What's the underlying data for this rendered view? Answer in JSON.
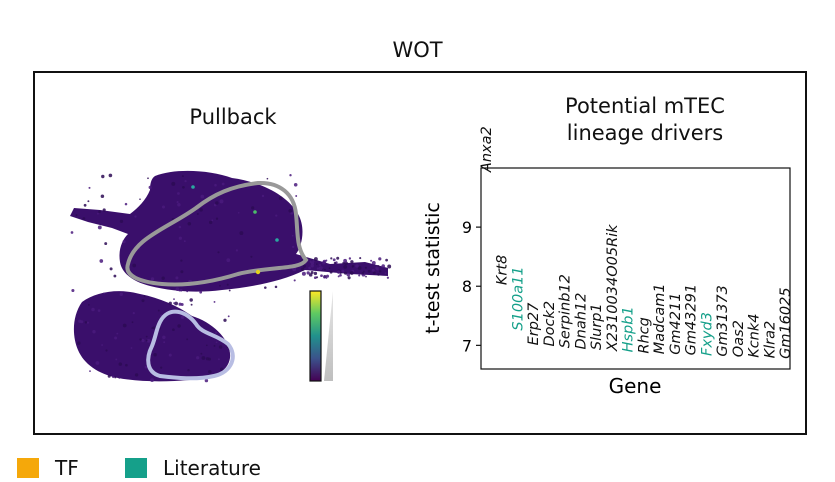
{
  "figure": {
    "title": "WOT",
    "pullback_title": "Pullback",
    "drivers_title_line1": "Potential mTEC",
    "drivers_title_line2": "lineage drivers"
  },
  "colors": {
    "frame": "#111111",
    "umap_points": "#3a0f6b",
    "tf": "#f5a80a",
    "literature": "#15a08a",
    "gene_default": "#111111",
    "outline_upper": "#999999",
    "outline_lower": "#b8bde3"
  },
  "legend": [
    {
      "label": "TF",
      "color": "#f5a80a"
    },
    {
      "label": "Literature",
      "color": "#15a08a"
    }
  ],
  "chart_data": {
    "type": "scatter",
    "title": "Potential mTEC lineage drivers",
    "xlabel": "Gene",
    "ylabel": "t-test statistic",
    "ylim": [
      6.6,
      10.0
    ],
    "yticks": [
      7,
      8,
      9
    ],
    "points": [
      {
        "gene": "Anxa2",
        "value": 9.93,
        "category": "none"
      },
      {
        "gene": "Krt8",
        "value": 8.02,
        "category": "none"
      },
      {
        "gene": "S100a11",
        "value": 7.25,
        "category": "literature"
      },
      {
        "gene": "Erp27",
        "value": 7.0,
        "category": "none"
      },
      {
        "gene": "Dock2",
        "value": 6.98,
        "category": "none"
      },
      {
        "gene": "Serpinb12",
        "value": 6.95,
        "category": "none"
      },
      {
        "gene": "Dnah12",
        "value": 6.93,
        "category": "none"
      },
      {
        "gene": "Slurp1",
        "value": 6.92,
        "category": "none"
      },
      {
        "gene": "X2310034O05Rik",
        "value": 6.9,
        "category": "none"
      },
      {
        "gene": "Hspb1",
        "value": 6.88,
        "category": "literature"
      },
      {
        "gene": "Rhcg",
        "value": 6.86,
        "category": "none"
      },
      {
        "gene": "Madcam1",
        "value": 6.85,
        "category": "none"
      },
      {
        "gene": "Gm4211",
        "value": 6.84,
        "category": "none"
      },
      {
        "gene": "Gm43291",
        "value": 6.83,
        "category": "none"
      },
      {
        "gene": "Fxyd3",
        "value": 6.82,
        "category": "literature"
      },
      {
        "gene": "Gm31373",
        "value": 6.81,
        "category": "none"
      },
      {
        "gene": "Oas2",
        "value": 6.8,
        "category": "none"
      },
      {
        "gene": "Kcnk4",
        "value": 6.79,
        "category": "none"
      },
      {
        "gene": "Klra2",
        "value": 6.78,
        "category": "none"
      },
      {
        "gene": "Gm16025",
        "value": 6.77,
        "category": "none"
      }
    ]
  }
}
